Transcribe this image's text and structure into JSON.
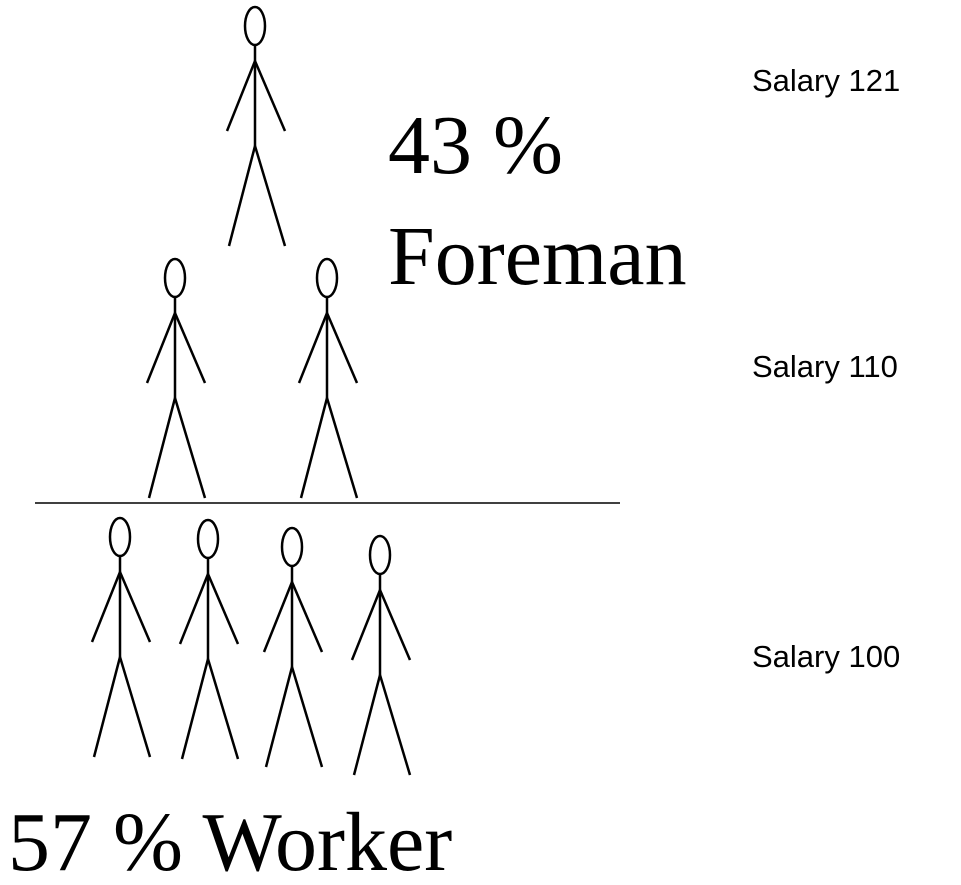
{
  "foreman_label": {
    "percent": "43 %",
    "role": "Foreman"
  },
  "worker_label": "57 % Worker",
  "salaries": [
    "Salary 121",
    "Salary 110",
    "Salary 100"
  ]
}
